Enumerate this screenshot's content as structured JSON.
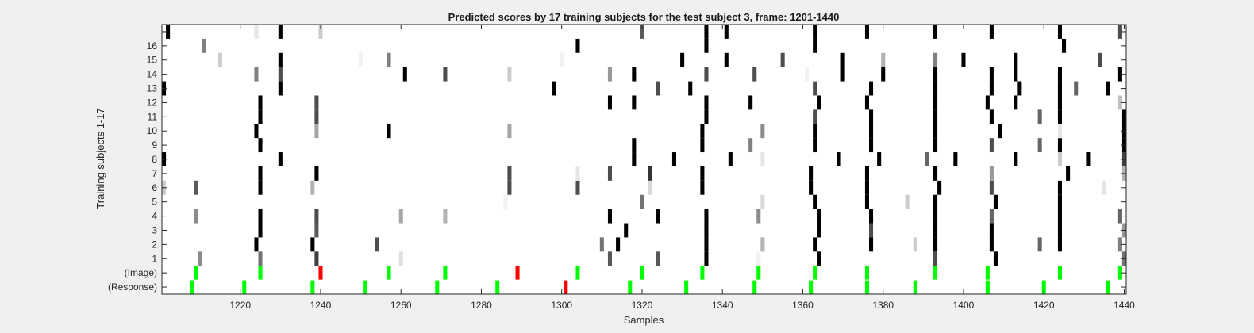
{
  "chart_data": {
    "type": "heatmap",
    "title": "Predicted scores by 17 training subjects for the test subject 3, frame: 1201-1440",
    "xlabel": "Samples",
    "ylabel": "Training subjects 1-17",
    "xlim": [
      1201,
      1440
    ],
    "xticks": [
      1220,
      1240,
      1260,
      1280,
      1300,
      1320,
      1340,
      1360,
      1380,
      1400,
      1420,
      1440
    ],
    "row_labels": [
      "(Response)",
      "(Image)",
      "1",
      "2",
      "3",
      "4",
      "5",
      "6",
      "7",
      "8",
      "9",
      "10",
      "11",
      "12",
      "13",
      "14",
      "15",
      "16",
      ""
    ],
    "colors": {
      "match": "#00ff00",
      "miss": "#ff0000",
      "background": "#ffffff",
      "figure": "#f0f0f0"
    },
    "response_events": [
      {
        "x": 1208,
        "c": "g"
      },
      {
        "x": 1221,
        "c": "g"
      },
      {
        "x": 1238,
        "c": "g"
      },
      {
        "x": 1251,
        "c": "g"
      },
      {
        "x": 1269,
        "c": "g"
      },
      {
        "x": 1284,
        "c": "g"
      },
      {
        "x": 1301,
        "c": "r"
      },
      {
        "x": 1317,
        "c": "g"
      },
      {
        "x": 1331,
        "c": "g"
      },
      {
        "x": 1348,
        "c": "g"
      },
      {
        "x": 1362,
        "c": "g"
      },
      {
        "x": 1376,
        "c": "g"
      },
      {
        "x": 1388,
        "c": "g"
      },
      {
        "x": 1406,
        "c": "g"
      },
      {
        "x": 1420,
        "c": "g"
      },
      {
        "x": 1436,
        "c": "g"
      }
    ],
    "image_events": [
      {
        "x": 1209,
        "c": "g"
      },
      {
        "x": 1225,
        "c": "g"
      },
      {
        "x": 1240,
        "c": "r"
      },
      {
        "x": 1257,
        "c": "g"
      },
      {
        "x": 1271,
        "c": "g"
      },
      {
        "x": 1289,
        "c": "r"
      },
      {
        "x": 1304,
        "c": "g"
      },
      {
        "x": 1320,
        "c": "g"
      },
      {
        "x": 1335,
        "c": "g"
      },
      {
        "x": 1349,
        "c": "g"
      },
      {
        "x": 1363,
        "c": "g"
      },
      {
        "x": 1376,
        "c": "g"
      },
      {
        "x": 1393,
        "c": "g"
      },
      {
        "x": 1406,
        "c": "g"
      },
      {
        "x": 1424,
        "c": "g"
      },
      {
        "x": 1439,
        "c": "g"
      }
    ],
    "subject_scores": [
      {
        "subject": 1,
        "cells": [
          [
            1210,
            0.55
          ],
          [
            1225,
            0.45
          ],
          [
            1239,
            0.25
          ],
          [
            1260,
            0.88
          ],
          [
            1312,
            0.35
          ],
          [
            1324,
            0.35
          ],
          [
            1336,
            0
          ],
          [
            1349,
            0.95
          ],
          [
            1364,
            0
          ],
          [
            1393,
            0.3
          ],
          [
            1408,
            0
          ],
          [
            1440,
            0.45
          ]
        ]
      },
      {
        "subject": 2,
        "cells": [
          [
            1224,
            0
          ],
          [
            1238,
            0
          ],
          [
            1254,
            0.3
          ],
          [
            1310,
            0.45
          ],
          [
            1314,
            0
          ],
          [
            1336,
            0
          ],
          [
            1350,
            0.7
          ],
          [
            1363,
            0
          ],
          [
            1377,
            0
          ],
          [
            1388,
            0.8
          ],
          [
            1393,
            0
          ],
          [
            1407,
            0
          ],
          [
            1419,
            0.4
          ],
          [
            1424,
            0
          ],
          [
            1439,
            0.5
          ]
        ]
      },
      {
        "subject": 3,
        "cells": [
          [
            1225,
            0
          ],
          [
            1239,
            0.35
          ],
          [
            1316,
            0
          ],
          [
            1336,
            0
          ],
          [
            1364,
            0
          ],
          [
            1377,
            0.3
          ],
          [
            1393,
            0
          ],
          [
            1407,
            0
          ],
          [
            1424,
            0
          ],
          [
            1440,
            0.6
          ]
        ]
      },
      {
        "subject": 4,
        "cells": [
          [
            1209,
            0.55
          ],
          [
            1225,
            0
          ],
          [
            1239,
            0.3
          ],
          [
            1260,
            0.65
          ],
          [
            1271,
            0.7
          ],
          [
            1312,
            0
          ],
          [
            1324,
            0
          ],
          [
            1336,
            0
          ],
          [
            1349,
            0.55
          ],
          [
            1364,
            0
          ],
          [
            1377,
            0
          ],
          [
            1393,
            0
          ],
          [
            1407,
            0.4
          ],
          [
            1424,
            0
          ],
          [
            1439,
            0.4
          ]
        ]
      },
      {
        "subject": 5,
        "cells": [
          [
            1286,
            0.95
          ],
          [
            1320,
            0.45
          ],
          [
            1350,
            0.85
          ],
          [
            1363,
            0
          ],
          [
            1376,
            0
          ],
          [
            1386,
            0.8
          ],
          [
            1393,
            0
          ],
          [
            1408,
            0
          ],
          [
            1424,
            0
          ]
        ]
      },
      {
        "subject": 6,
        "cells": [
          [
            1201,
            0.8
          ],
          [
            1209,
            0.35
          ],
          [
            1225,
            0
          ],
          [
            1238,
            0.7
          ],
          [
            1287,
            0.3
          ],
          [
            1304,
            0.3
          ],
          [
            1322,
            0.85
          ],
          [
            1335,
            0
          ],
          [
            1362,
            0
          ],
          [
            1376,
            0
          ],
          [
            1394,
            0
          ],
          [
            1407,
            0.3
          ],
          [
            1424,
            0
          ],
          [
            1435,
            0.9
          ]
        ]
      },
      {
        "subject": 7,
        "cells": [
          [
            1225,
            0
          ],
          [
            1239,
            0
          ],
          [
            1287,
            0.3
          ],
          [
            1304,
            0.9
          ],
          [
            1312,
            0.3
          ],
          [
            1322,
            0.2
          ],
          [
            1335,
            0
          ],
          [
            1362,
            0
          ],
          [
            1376,
            0
          ],
          [
            1393,
            0
          ],
          [
            1407,
            0.6
          ],
          [
            1426,
            0
          ],
          [
            1440,
            0.7
          ]
        ]
      },
      {
        "subject": 8,
        "cells": [
          [
            1201,
            0
          ],
          [
            1230,
            0
          ],
          [
            1318,
            0
          ],
          [
            1328,
            0
          ],
          [
            1342,
            0
          ],
          [
            1350,
            0.9
          ],
          [
            1369,
            0
          ],
          [
            1379,
            0
          ],
          [
            1391,
            0.4
          ],
          [
            1398,
            0
          ],
          [
            1413,
            0
          ],
          [
            1424,
            0.8
          ],
          [
            1431,
            0
          ],
          [
            1440,
            0.25
          ]
        ]
      },
      {
        "subject": 9,
        "cells": [
          [
            1225,
            0
          ],
          [
            1318,
            0
          ],
          [
            1335,
            0
          ],
          [
            1347,
            0.5
          ],
          [
            1363,
            0
          ],
          [
            1377,
            0
          ],
          [
            1393,
            0
          ],
          [
            1407,
            0.3
          ],
          [
            1419,
            0.4
          ],
          [
            1424,
            0
          ],
          [
            1440,
            0
          ]
        ]
      },
      {
        "subject": 10,
        "cells": [
          [
            1224,
            0
          ],
          [
            1239,
            0.65
          ],
          [
            1257,
            0
          ],
          [
            1287,
            0.65
          ],
          [
            1335,
            0
          ],
          [
            1350,
            0.55
          ],
          [
            1363,
            0
          ],
          [
            1377,
            0
          ],
          [
            1393,
            0
          ],
          [
            1409,
            0
          ],
          [
            1424,
            0.9
          ],
          [
            1440,
            0
          ]
        ]
      },
      {
        "subject": 11,
        "cells": [
          [
            1225,
            0
          ],
          [
            1239,
            0.3
          ],
          [
            1336,
            0
          ],
          [
            1363,
            0.3
          ],
          [
            1377,
            0
          ],
          [
            1393,
            0
          ],
          [
            1407,
            0
          ],
          [
            1419,
            0.4
          ],
          [
            1424,
            0
          ],
          [
            1440,
            0
          ]
        ]
      },
      {
        "subject": 12,
        "cells": [
          [
            1225,
            0
          ],
          [
            1239,
            0.3
          ],
          [
            1312,
            0
          ],
          [
            1318,
            0
          ],
          [
            1336,
            0
          ],
          [
            1347,
            0
          ],
          [
            1364,
            0
          ],
          [
            1376,
            0
          ],
          [
            1393,
            0
          ],
          [
            1406,
            0
          ],
          [
            1413,
            0
          ],
          [
            1424,
            0
          ],
          [
            1439,
            0.75
          ]
        ]
      },
      {
        "subject": 13,
        "cells": [
          [
            1201,
            0
          ],
          [
            1230,
            0
          ],
          [
            1298,
            0
          ],
          [
            1324,
            0.3
          ],
          [
            1332,
            0
          ],
          [
            1363,
            0.3
          ],
          [
            1377,
            0
          ],
          [
            1393,
            0
          ],
          [
            1407,
            0
          ],
          [
            1414,
            0
          ],
          [
            1424,
            0
          ],
          [
            1428,
            0.4
          ],
          [
            1436,
            0
          ]
        ]
      },
      {
        "subject": 14,
        "cells": [
          [
            1224,
            0.5
          ],
          [
            1230,
            0.3
          ],
          [
            1261,
            0
          ],
          [
            1271,
            0.3
          ],
          [
            1287,
            0.8
          ],
          [
            1312,
            0.6
          ],
          [
            1318,
            0
          ],
          [
            1336,
            0.3
          ],
          [
            1348,
            0.3
          ],
          [
            1361,
            0.95
          ],
          [
            1370,
            0
          ],
          [
            1380,
            0
          ],
          [
            1393,
            0
          ],
          [
            1407,
            0
          ],
          [
            1413,
            0
          ],
          [
            1424,
            0
          ],
          [
            1439,
            0
          ]
        ]
      },
      {
        "subject": 15,
        "cells": [
          [
            1215,
            0.8
          ],
          [
            1230,
            0
          ],
          [
            1250,
            0.95
          ],
          [
            1257,
            0.5
          ],
          [
            1300,
            0.95
          ],
          [
            1330,
            0
          ],
          [
            1341,
            0
          ],
          [
            1355,
            0.3
          ],
          [
            1370,
            0
          ],
          [
            1380,
            0.7
          ],
          [
            1393,
            0.5
          ],
          [
            1400,
            0
          ],
          [
            1413,
            0
          ],
          [
            1434,
            0.3
          ]
        ]
      },
      {
        "subject": 16,
        "cells": [
          [
            1211,
            0.5
          ],
          [
            1304,
            0
          ],
          [
            1336,
            0
          ],
          [
            1363,
            0
          ],
          [
            1425,
            0
          ]
        ]
      },
      {
        "subject": 17,
        "cells": [
          [
            1202,
            0
          ],
          [
            1224,
            0.9
          ],
          [
            1230,
            0
          ],
          [
            1240,
            0.8
          ],
          [
            1320,
            0.35
          ],
          [
            1336,
            0
          ],
          [
            1341,
            0
          ],
          [
            1363,
            0
          ],
          [
            1376,
            0
          ],
          [
            1393,
            0
          ],
          [
            1407,
            0
          ],
          [
            1424,
            0
          ],
          [
            1439,
            0.3
          ]
        ]
      }
    ]
  }
}
